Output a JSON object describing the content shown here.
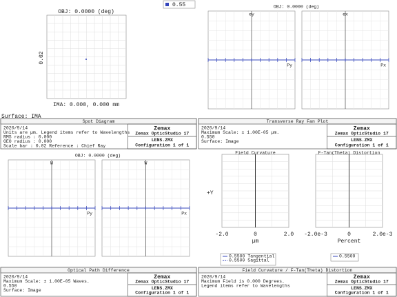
{
  "spot_diagram": {
    "legend": "0.55",
    "field": "OBJ: 0.0000 (deg)",
    "scale_label": "0.02",
    "image": "IMA: 0.000, 0.000 mm",
    "surface": "Surface: IMA",
    "info": {
      "title": "Spot Diagram",
      "lines": [
        "2020/9/14",
        "Units are µm.  Legend items refer to Wavelengths",
        "RMS radius :    0.000",
        "GEO radius :    0.000",
        "Scale bar  : 0.02      Reference  : Chief Ray"
      ],
      "brand": [
        "Zemax",
        "Zemax OpticStudio 17",
        "LENS.ZMX",
        "Configuration 1 of 1"
      ]
    }
  },
  "ray_fan": {
    "field": "OBJ: 0.0000 (deg)",
    "plots": [
      {
        "y_label": "ey",
        "x_label": "Py"
      },
      {
        "y_label": "ex",
        "x_label": "Px"
      }
    ],
    "info": {
      "title": "Transverse Ray Fan Plot",
      "lines": [
        "2020/9/14",
        "Maximum Scale: ± 1.00E-05 µm.",
        "0.550",
        "Surface: Image"
      ],
      "brand": [
        "Zemax",
        "Zemax OpticStudio 17",
        "LENS.ZMX",
        "Configuration 1 of 1"
      ]
    }
  },
  "opd": {
    "field": "OBJ: 0.0000 (deg)",
    "plots": [
      {
        "y_label": "W",
        "x_label": "Py"
      },
      {
        "y_label": "W",
        "x_label": "Px"
      }
    ],
    "info": {
      "title": "Optical Path Difference",
      "lines": [
        "2020/9/14",
        "Maximum Scale: ± 1.00E-05 Waves.",
        "0.550",
        "Surface: Image"
      ],
      "brand": [
        "Zemax",
        "Zemax OpticStudio 17",
        "LENS.ZMX",
        "Configuration 1 of 1"
      ]
    }
  },
  "field_curvature": {
    "y_label": "+Y",
    "plots": [
      {
        "title": "Field Curvature",
        "ticks": [
          "-2.0",
          "0",
          "2.0"
        ],
        "unit": "µm",
        "legend": [
          "0.5500 Tangential",
          "0.5500 Sagittal"
        ]
      },
      {
        "title": "F-Tan(Theta) Distortion",
        "ticks": [
          "-2.0e-3",
          "0",
          "2.0e-3"
        ],
        "unit": "Percent",
        "legend": [
          "0.5500"
        ]
      }
    ],
    "info": {
      "title": "Field Curvature / F-Tan(Theta) Distortion",
      "lines": [
        "2020/9/14",
        "Maximum Field is 0.000 Degrees.",
        "Legend items refer to Wavelengths"
      ],
      "brand": [
        "Zemax",
        "Zemax OpticStudio 17",
        "LENS.ZMX",
        "Configuration 1 of 1"
      ]
    }
  }
}
